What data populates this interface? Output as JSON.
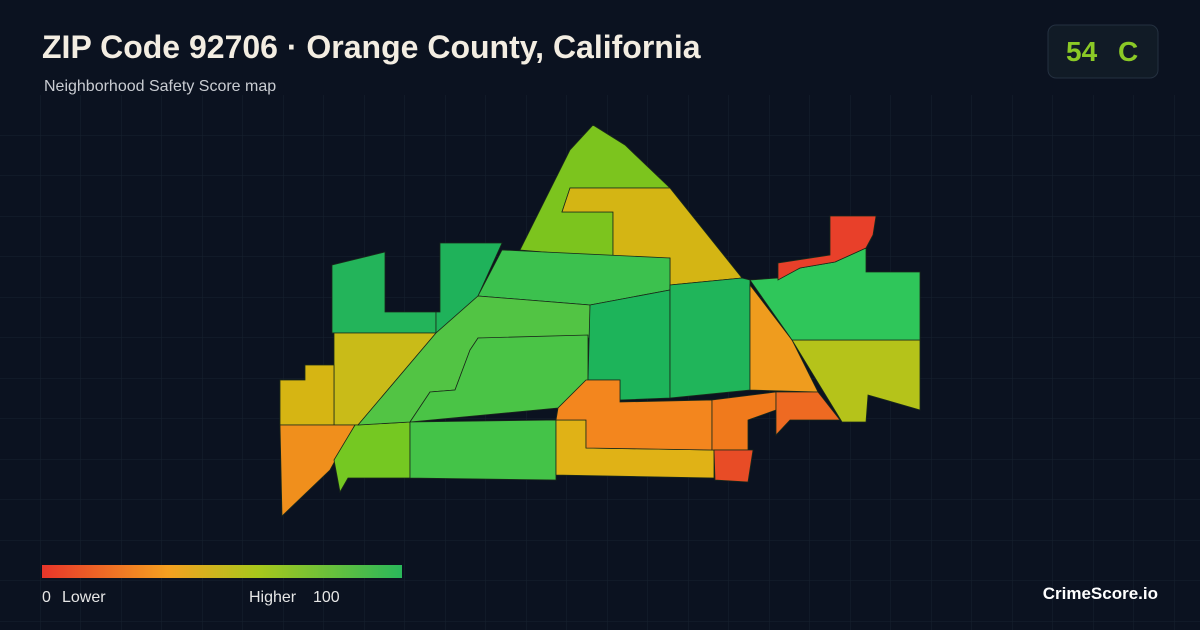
{
  "header": {
    "title": "ZIP Code 92706 · Orange County, California",
    "subtitle": "Neighborhood Safety Score map"
  },
  "score": {
    "value": 54,
    "grade": "C"
  },
  "legend": {
    "min": 0,
    "min_label": "Lower",
    "max_label": "Higher",
    "max": 100
  },
  "brand": "CrimeScore.io"
}
